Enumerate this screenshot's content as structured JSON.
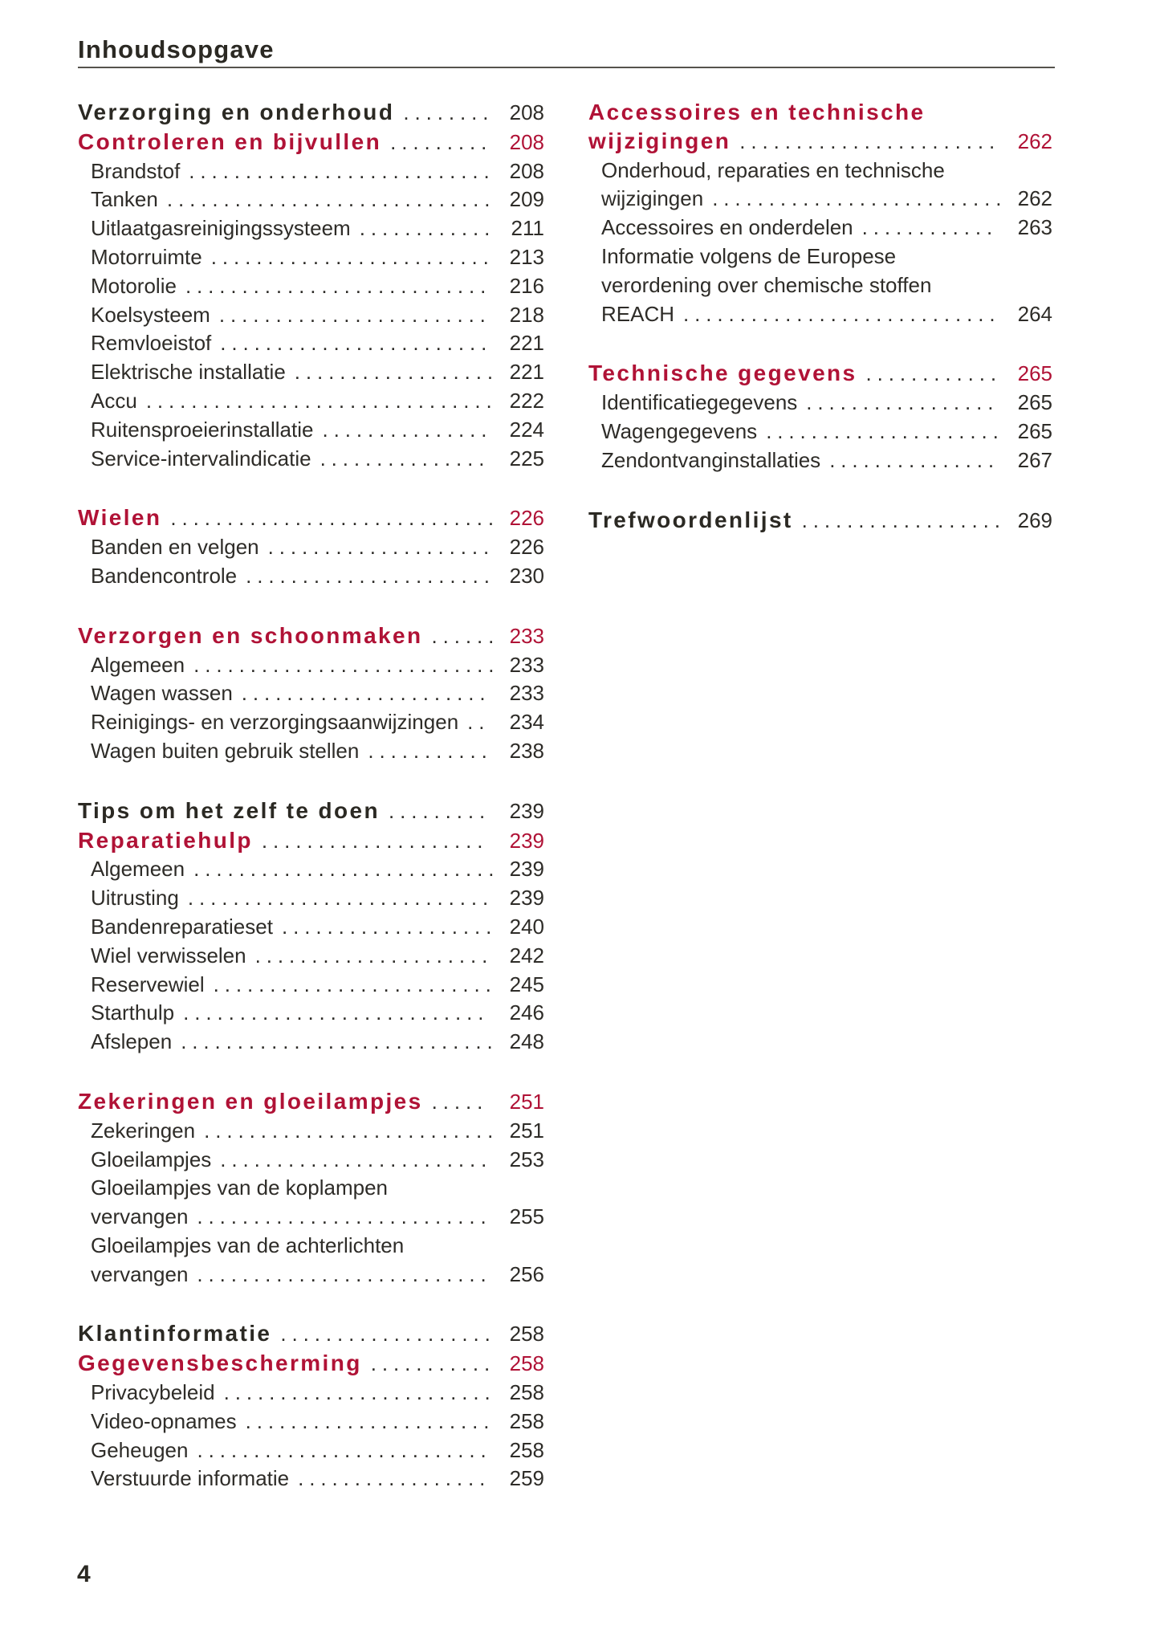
{
  "header": {
    "title": "Inhoudsopgave"
  },
  "footer": {
    "page_number": "4"
  },
  "colors": {
    "accent_red": "#b01236",
    "text_dark": "#2e2c28",
    "rule": "#55534d",
    "background": "#ffffff"
  },
  "toc": {
    "columns": [
      {
        "groups": [
          {
            "entries": [
              {
                "type": "h1",
                "lines": [
                  "Verzorging en onderhoud"
                ],
                "page": "208"
              },
              {
                "type": "h2",
                "lines": [
                  "Controleren en bijvullen"
                ],
                "page": "208"
              },
              {
                "type": "sub",
                "lines": [
                  "Brandstof"
                ],
                "page": "208"
              },
              {
                "type": "sub",
                "lines": [
                  "Tanken"
                ],
                "page": "209"
              },
              {
                "type": "sub",
                "lines": [
                  "Uitlaatgasreinigingssysteem"
                ],
                "page": "211"
              },
              {
                "type": "sub",
                "lines": [
                  "Motorruimte"
                ],
                "page": "213"
              },
              {
                "type": "sub",
                "lines": [
                  "Motorolie"
                ],
                "page": "216"
              },
              {
                "type": "sub",
                "lines": [
                  "Koelsysteem"
                ],
                "page": "218"
              },
              {
                "type": "sub",
                "lines": [
                  "Remvloeistof"
                ],
                "page": "221"
              },
              {
                "type": "sub",
                "lines": [
                  "Elektrische installatie"
                ],
                "page": "221"
              },
              {
                "type": "sub",
                "lines": [
                  "Accu"
                ],
                "page": "222"
              },
              {
                "type": "sub",
                "lines": [
                  "Ruitensproeierinstallatie"
                ],
                "page": "224"
              },
              {
                "type": "sub",
                "lines": [
                  "Service-intervalindicatie"
                ],
                "page": "225"
              }
            ]
          },
          {
            "entries": [
              {
                "type": "h2",
                "lines": [
                  "Wielen"
                ],
                "page": "226"
              },
              {
                "type": "sub",
                "lines": [
                  "Banden en velgen"
                ],
                "page": "226"
              },
              {
                "type": "sub",
                "lines": [
                  "Bandencontrole"
                ],
                "page": "230"
              }
            ]
          },
          {
            "entries": [
              {
                "type": "h2",
                "lines": [
                  "Verzorgen en schoonmaken"
                ],
                "page": "233"
              },
              {
                "type": "sub",
                "lines": [
                  "Algemeen"
                ],
                "page": "233"
              },
              {
                "type": "sub",
                "lines": [
                  "Wagen wassen"
                ],
                "page": "233"
              },
              {
                "type": "sub",
                "lines": [
                  "Reinigings- en verzorgingsaanwijzingen"
                ],
                "page": "234"
              },
              {
                "type": "sub",
                "lines": [
                  "Wagen buiten gebruik stellen"
                ],
                "page": "238"
              }
            ]
          },
          {
            "entries": [
              {
                "type": "h1",
                "lines": [
                  "Tips om het zelf te doen"
                ],
                "page": "239"
              },
              {
                "type": "h2",
                "lines": [
                  "Reparatiehulp"
                ],
                "page": "239"
              },
              {
                "type": "sub",
                "lines": [
                  "Algemeen"
                ],
                "page": "239"
              },
              {
                "type": "sub",
                "lines": [
                  "Uitrusting"
                ],
                "page": "239"
              },
              {
                "type": "sub",
                "lines": [
                  "Bandenreparatieset"
                ],
                "page": "240"
              },
              {
                "type": "sub",
                "lines": [
                  "Wiel verwisselen"
                ],
                "page": "242"
              },
              {
                "type": "sub",
                "lines": [
                  "Reservewiel"
                ],
                "page": "245"
              },
              {
                "type": "sub",
                "lines": [
                  "Starthulp"
                ],
                "page": "246"
              },
              {
                "type": "sub",
                "lines": [
                  "Afslepen"
                ],
                "page": "248"
              }
            ]
          },
          {
            "entries": [
              {
                "type": "h2",
                "lines": [
                  "Zekeringen en gloeilampjes"
                ],
                "page": "251"
              },
              {
                "type": "sub",
                "lines": [
                  "Zekeringen"
                ],
                "page": "251"
              },
              {
                "type": "sub",
                "lines": [
                  "Gloeilampjes"
                ],
                "page": "253"
              },
              {
                "type": "sub",
                "lines": [
                  "Gloeilampjes van de koplampen",
                  "vervangen"
                ],
                "page": "255"
              },
              {
                "type": "sub",
                "lines": [
                  "Gloeilampjes van de achterlichten",
                  "vervangen"
                ],
                "page": "256"
              }
            ]
          },
          {
            "entries": [
              {
                "type": "h1",
                "lines": [
                  "Klantinformatie"
                ],
                "page": "258"
              },
              {
                "type": "h2",
                "lines": [
                  "Gegevensbescherming"
                ],
                "page": "258"
              },
              {
                "type": "sub",
                "lines": [
                  "Privacybeleid"
                ],
                "page": "258"
              },
              {
                "type": "sub",
                "lines": [
                  "Video-opnames"
                ],
                "page": "258"
              },
              {
                "type": "sub",
                "lines": [
                  "Geheugen"
                ],
                "page": "258"
              },
              {
                "type": "sub",
                "lines": [
                  "Verstuurde informatie"
                ],
                "page": "259"
              }
            ]
          }
        ]
      },
      {
        "groups": [
          {
            "entries": [
              {
                "type": "h2",
                "lines": [
                  "Accessoires en technische",
                  "wijzigingen"
                ],
                "page": "262"
              },
              {
                "type": "sub",
                "lines": [
                  "Onderhoud, reparaties en technische",
                  "wijzigingen"
                ],
                "page": "262"
              },
              {
                "type": "sub",
                "lines": [
                  "Accessoires en onderdelen"
                ],
                "page": "263"
              },
              {
                "type": "sub",
                "lines": [
                  "Informatie volgens de Europese",
                  "verordening over chemische stoffen",
                  "REACH"
                ],
                "page": "264"
              }
            ]
          },
          {
            "entries": [
              {
                "type": "h2",
                "lines": [
                  "Technische gegevens"
                ],
                "page": "265"
              },
              {
                "type": "sub",
                "lines": [
                  "Identificatiegegevens"
                ],
                "page": "265"
              },
              {
                "type": "sub",
                "lines": [
                  "Wagengegevens"
                ],
                "page": "265"
              },
              {
                "type": "sub",
                "lines": [
                  "Zendontvanginstallaties"
                ],
                "page": "267"
              }
            ]
          },
          {
            "entries": [
              {
                "type": "h1",
                "lines": [
                  "Trefwoordenlijst"
                ],
                "page": "269"
              }
            ]
          }
        ]
      }
    ]
  }
}
